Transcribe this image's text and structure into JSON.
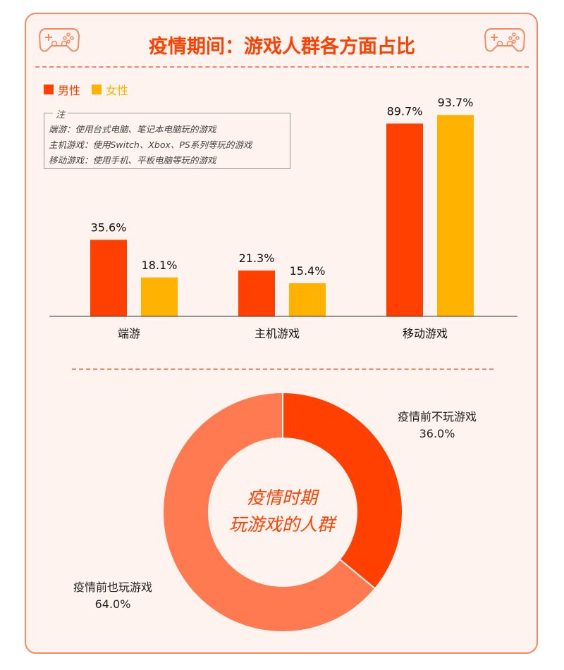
{
  "title": "疫情期间：游戏人群各方面占比",
  "colors": {
    "male": "#ff4000",
    "female": "#ffb300",
    "accent": "#ff4000",
    "border": "#f58a63",
    "donut_also": "#ff7a50"
  },
  "icons": [
    "gamepad-icon",
    "gamepad-icon"
  ],
  "legend": {
    "male": "男性",
    "female": "女性"
  },
  "note": {
    "title": "注",
    "lines": [
      "端游：使用台式电脑、笔记本电脑玩的游戏",
      "主机游戏：使用Switch、Xbox、PS系列等玩的游戏",
      "移动游戏：使用手机、平板电脑等玩的游戏"
    ]
  },
  "donut": {
    "center_line1": "疫情时期",
    "center_line2": "玩游戏的人群"
  },
  "chart_data": [
    {
      "type": "bar",
      "categories": [
        "端游",
        "主机游戏",
        "移动游戏"
      ],
      "series": [
        {
          "name": "男性",
          "values": [
            35.6,
            21.3,
            89.7
          ],
          "labels": [
            "35.6%",
            "21.3%",
            "89.7%"
          ]
        },
        {
          "name": "女性",
          "values": [
            18.1,
            15.4,
            93.7
          ],
          "labels": [
            "18.1%",
            "15.4%",
            "93.7%"
          ]
        }
      ],
      "ylim": [
        0,
        100
      ],
      "grid": false,
      "legend": "top-left"
    },
    {
      "type": "pie",
      "labels": [
        "疫情前不玩游戏",
        "疫情前也玩游戏"
      ],
      "values": [
        36.0,
        64.0
      ],
      "value_labels": [
        "36.0%",
        "64.0%"
      ]
    }
  ]
}
